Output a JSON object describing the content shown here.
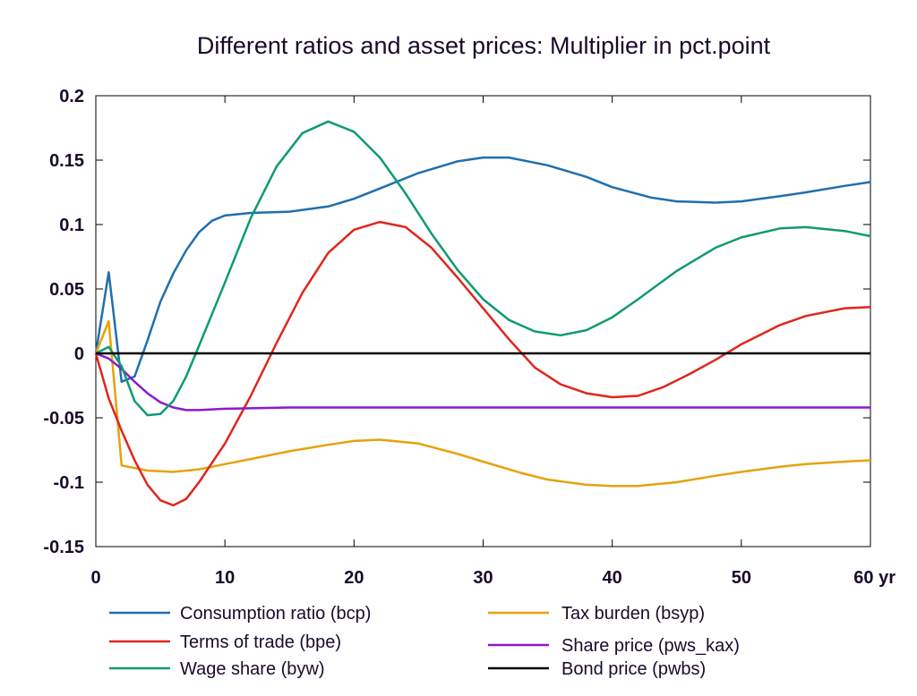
{
  "chart_data": {
    "type": "line",
    "title": "Different ratios and asset prices: Multiplier in pct.point",
    "x_unit": "yr",
    "xlim": [
      0,
      60
    ],
    "ylim": [
      -0.15,
      0.2
    ],
    "x_ticks": [
      0,
      10,
      20,
      30,
      40,
      50,
      60
    ],
    "x_tick_labels": [
      "0",
      "10",
      "20",
      "30",
      "40",
      "50",
      "60 yr"
    ],
    "y_ticks": [
      -0.15,
      -0.1,
      -0.05,
      0,
      0.05,
      0.1,
      0.15,
      0.2
    ],
    "y_tick_labels": [
      "-0.15",
      "-0.1",
      "-0.05",
      "0",
      "0.05",
      "0.1",
      "0.15",
      "0.2"
    ],
    "grid": false,
    "legend_position": "bottom",
    "series": [
      {
        "name": "Consumption ratio (bcp)",
        "color": "#1f6fae",
        "points": [
          [
            0,
            0
          ],
          [
            1,
            0.063
          ],
          [
            2,
            -0.022
          ],
          [
            3,
            -0.018
          ],
          [
            4,
            0.01
          ],
          [
            5,
            0.04
          ],
          [
            6,
            0.062
          ],
          [
            7,
            0.08
          ],
          [
            8,
            0.094
          ],
          [
            9,
            0.103
          ],
          [
            10,
            0.107
          ],
          [
            12,
            0.109
          ],
          [
            15,
            0.11
          ],
          [
            18,
            0.114
          ],
          [
            20,
            0.12
          ],
          [
            22,
            0.128
          ],
          [
            25,
            0.14
          ],
          [
            28,
            0.149
          ],
          [
            30,
            0.152
          ],
          [
            32,
            0.152
          ],
          [
            35,
            0.146
          ],
          [
            38,
            0.137
          ],
          [
            40,
            0.129
          ],
          [
            43,
            0.121
          ],
          [
            45,
            0.118
          ],
          [
            48,
            0.117
          ],
          [
            50,
            0.118
          ],
          [
            53,
            0.122
          ],
          [
            55,
            0.125
          ],
          [
            58,
            0.13
          ],
          [
            60,
            0.133
          ]
        ]
      },
      {
        "name": "Tax burden (bsyp)",
        "color": "#e6a20c",
        "points": [
          [
            0,
            0
          ],
          [
            1,
            0.025
          ],
          [
            2,
            -0.087
          ],
          [
            3,
            -0.089
          ],
          [
            4,
            -0.091
          ],
          [
            6,
            -0.092
          ],
          [
            8,
            -0.09
          ],
          [
            10,
            -0.086
          ],
          [
            12,
            -0.082
          ],
          [
            15,
            -0.076
          ],
          [
            18,
            -0.071
          ],
          [
            20,
            -0.068
          ],
          [
            22,
            -0.067
          ],
          [
            25,
            -0.07
          ],
          [
            28,
            -0.078
          ],
          [
            30,
            -0.084
          ],
          [
            33,
            -0.093
          ],
          [
            35,
            -0.098
          ],
          [
            38,
            -0.102
          ],
          [
            40,
            -0.103
          ],
          [
            42,
            -0.103
          ],
          [
            45,
            -0.1
          ],
          [
            48,
            -0.095
          ],
          [
            50,
            -0.092
          ],
          [
            53,
            -0.088
          ],
          [
            55,
            -0.086
          ],
          [
            58,
            -0.084
          ],
          [
            60,
            -0.083
          ]
        ]
      },
      {
        "name": "Terms of trade (bpe)",
        "color": "#e0261c",
        "points": [
          [
            0,
            0
          ],
          [
            1,
            -0.035
          ],
          [
            2,
            -0.06
          ],
          [
            3,
            -0.083
          ],
          [
            4,
            -0.102
          ],
          [
            5,
            -0.114
          ],
          [
            6,
            -0.118
          ],
          [
            7,
            -0.113
          ],
          [
            8,
            -0.1
          ],
          [
            10,
            -0.07
          ],
          [
            12,
            -0.033
          ],
          [
            14,
            0.008
          ],
          [
            16,
            0.047
          ],
          [
            18,
            0.078
          ],
          [
            20,
            0.096
          ],
          [
            22,
            0.102
          ],
          [
            24,
            0.098
          ],
          [
            26,
            0.082
          ],
          [
            28,
            0.059
          ],
          [
            30,
            0.035
          ],
          [
            32,
            0.011
          ],
          [
            34,
            -0.011
          ],
          [
            36,
            -0.024
          ],
          [
            38,
            -0.031
          ],
          [
            40,
            -0.034
          ],
          [
            42,
            -0.033
          ],
          [
            44,
            -0.026
          ],
          [
            46,
            -0.016
          ],
          [
            48,
            -0.005
          ],
          [
            50,
            0.007
          ],
          [
            53,
            0.022
          ],
          [
            55,
            0.029
          ],
          [
            58,
            0.035
          ],
          [
            60,
            0.036
          ]
        ]
      },
      {
        "name": "Share price (pws_kax)",
        "color": "#8d19cc",
        "points": [
          [
            0,
            0
          ],
          [
            1,
            -0.004
          ],
          [
            2,
            -0.012
          ],
          [
            3,
            -0.022
          ],
          [
            4,
            -0.031
          ],
          [
            5,
            -0.038
          ],
          [
            6,
            -0.042
          ],
          [
            7,
            -0.044
          ],
          [
            8,
            -0.044
          ],
          [
            10,
            -0.043
          ],
          [
            15,
            -0.042
          ],
          [
            20,
            -0.042
          ],
          [
            30,
            -0.042
          ],
          [
            40,
            -0.042
          ],
          [
            50,
            -0.042
          ],
          [
            60,
            -0.042
          ]
        ]
      },
      {
        "name": "Wage share (byw)",
        "color": "#0f9a74",
        "points": [
          [
            0,
            0
          ],
          [
            1,
            0.005
          ],
          [
            2,
            -0.01
          ],
          [
            3,
            -0.037
          ],
          [
            4,
            -0.048
          ],
          [
            5,
            -0.047
          ],
          [
            6,
            -0.037
          ],
          [
            7,
            -0.018
          ],
          [
            8,
            0.006
          ],
          [
            10,
            0.055
          ],
          [
            12,
            0.105
          ],
          [
            14,
            0.145
          ],
          [
            16,
            0.171
          ],
          [
            18,
            0.18
          ],
          [
            20,
            0.172
          ],
          [
            22,
            0.152
          ],
          [
            24,
            0.124
          ],
          [
            26,
            0.093
          ],
          [
            28,
            0.065
          ],
          [
            30,
            0.042
          ],
          [
            32,
            0.026
          ],
          [
            34,
            0.017
          ],
          [
            36,
            0.014
          ],
          [
            38,
            0.018
          ],
          [
            40,
            0.028
          ],
          [
            42,
            0.042
          ],
          [
            45,
            0.064
          ],
          [
            48,
            0.082
          ],
          [
            50,
            0.09
          ],
          [
            53,
            0.097
          ],
          [
            55,
            0.098
          ],
          [
            58,
            0.095
          ],
          [
            60,
            0.091
          ]
        ]
      },
      {
        "name": "Bond price (pwbs)",
        "color": "#000000",
        "points": [
          [
            0,
            0
          ],
          [
            60,
            0
          ]
        ]
      }
    ],
    "legend_layout": [
      [
        "Consumption ratio (bcp)",
        "Tax burden (bsyp)"
      ],
      [
        "Terms of trade (bpe)",
        "Share price (pws_kax)"
      ],
      [
        "Wage share (byw)",
        "Bond price (pwbs)"
      ]
    ]
  }
}
